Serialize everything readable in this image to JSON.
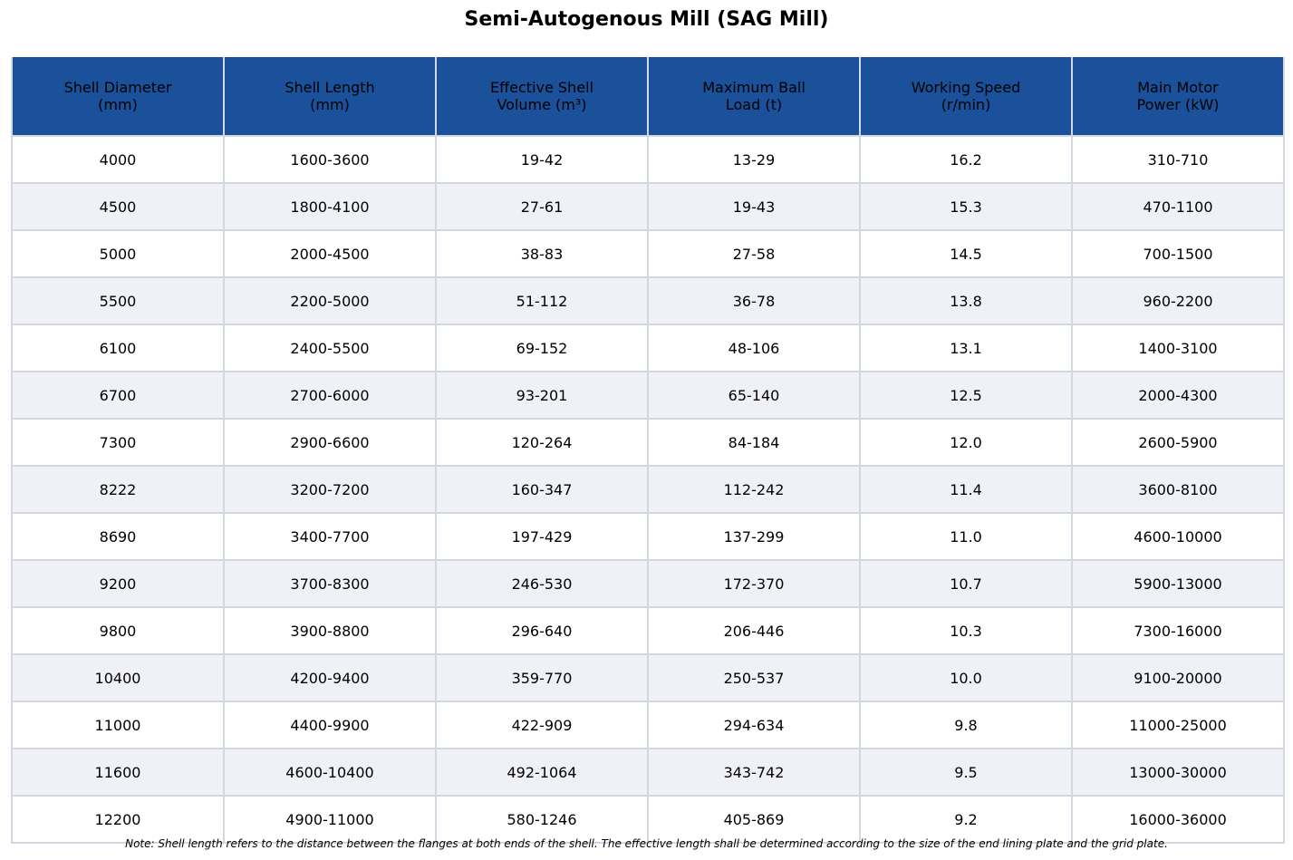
{
  "title": "Semi-Autogenous Mill (SAG Mill)",
  "colors": {
    "header_background": "#1a519a",
    "row_alt_background": "#eff1f6",
    "grid_line": "#d2d7e1"
  },
  "table": {
    "headers": [
      "Shell Diameter\n(mm)",
      "Shell Length\n(mm)",
      "Effective Shell\nVolume (m³)",
      "Maximum Ball\nLoad (t)",
      "Working Speed\n(r/min)",
      "Main Motor\nPower (kW)"
    ],
    "rows": [
      [
        "4000",
        "1600-3600",
        "19-42",
        "13-29",
        "16.2",
        "310-710"
      ],
      [
        "4500",
        "1800-4100",
        "27-61",
        "19-43",
        "15.3",
        "470-1100"
      ],
      [
        "5000",
        "2000-4500",
        "38-83",
        "27-58",
        "14.5",
        "700-1500"
      ],
      [
        "5500",
        "2200-5000",
        "51-112",
        "36-78",
        "13.8",
        "960-2200"
      ],
      [
        "6100",
        "2400-5500",
        "69-152",
        "48-106",
        "13.1",
        "1400-3100"
      ],
      [
        "6700",
        "2700-6000",
        "93-201",
        "65-140",
        "12.5",
        "2000-4300"
      ],
      [
        "7300",
        "2900-6600",
        "120-264",
        "84-184",
        "12.0",
        "2600-5900"
      ],
      [
        "8222",
        "3200-7200",
        "160-347",
        "112-242",
        "11.4",
        "3600-8100"
      ],
      [
        "8690",
        "3400-7700",
        "197-429",
        "137-299",
        "11.0",
        "4600-10000"
      ],
      [
        "9200",
        "3700-8300",
        "246-530",
        "172-370",
        "10.7",
        "5900-13000"
      ],
      [
        "9800",
        "3900-8800",
        "296-640",
        "206-446",
        "10.3",
        "7300-16000"
      ],
      [
        "10400",
        "4200-9400",
        "359-770",
        "250-537",
        "10.0",
        "9100-20000"
      ],
      [
        "11000",
        "4400-9900",
        "422-909",
        "294-634",
        "9.8",
        "11000-25000"
      ],
      [
        "11600",
        "4600-10400",
        "492-1064",
        "343-742",
        "9.5",
        "13000-30000"
      ],
      [
        "12200",
        "4900-11000",
        "580-1246",
        "405-869",
        "9.2",
        "16000-36000"
      ]
    ]
  },
  "footnote": "Note: Shell length refers to the distance between the flanges at both ends of the shell. The effective length shall be determined according to the size of the end lining plate and the grid plate."
}
